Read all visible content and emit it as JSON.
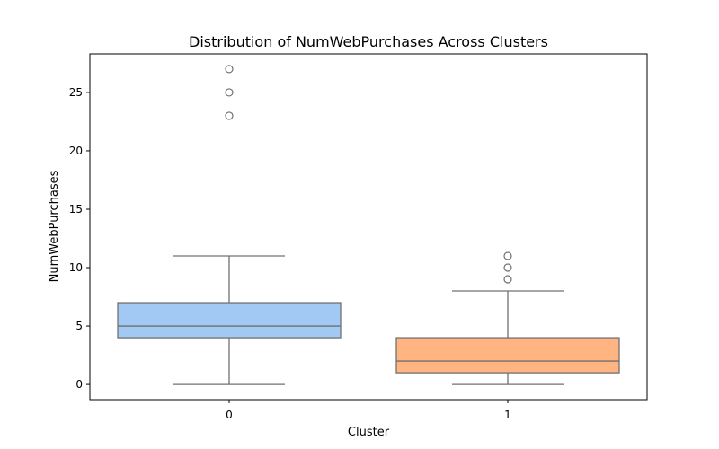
{
  "chart_data": {
    "type": "box",
    "title": "Distribution of NumWebPurchases Across Clusters",
    "xlabel": "Cluster",
    "ylabel": "NumWebPurchases",
    "ylim": [
      -1.3,
      28.3
    ],
    "yticks": [
      0,
      5,
      10,
      15,
      20,
      25
    ],
    "categories": [
      "0",
      "1"
    ],
    "grid": false,
    "legend": "none",
    "boxes": [
      {
        "category": "0",
        "whisker_low": 0,
        "q1": 4,
        "median": 5,
        "q3": 7,
        "whisker_high": 11,
        "outliers": [
          23,
          25,
          27
        ],
        "color": "#a1c9f4"
      },
      {
        "category": "1",
        "whisker_low": 0,
        "q1": 1,
        "median": 2,
        "q3": 4,
        "whisker_high": 8,
        "outliers": [
          9,
          10,
          11
        ],
        "color": "#ffb482"
      }
    ]
  }
}
